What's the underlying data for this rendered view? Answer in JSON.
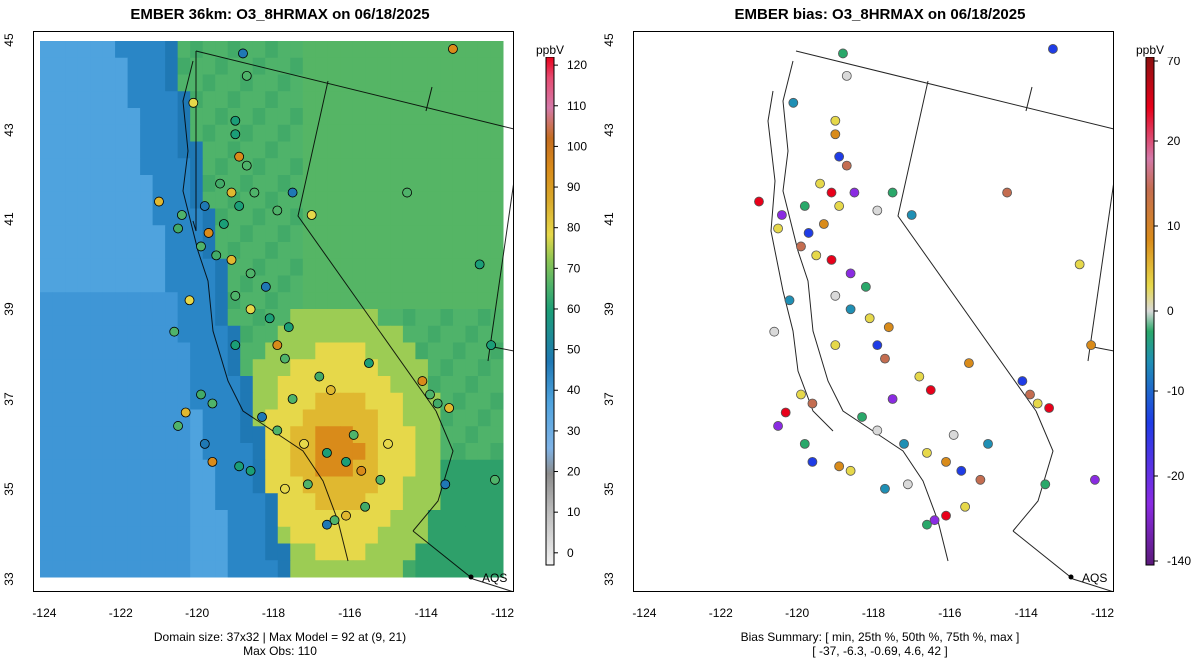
{
  "left_panel": {
    "title": "EMBER 36km: O3_8HRMAX on 06/18/2025",
    "caption_line1": "Domain size: 37x32 | Max Model = 92 at (9, 21)",
    "caption_line2": "Max Obs: 110",
    "colorbar_unit": "ppbV",
    "colorbar_ticks": [
      "120",
      "110",
      "100",
      "90",
      "80",
      "70",
      "60",
      "50",
      "40",
      "30",
      "20",
      "10",
      "0"
    ],
    "colorbar_tick_values": [
      120,
      110,
      100,
      90,
      80,
      70,
      60,
      50,
      40,
      30,
      20,
      10,
      0
    ],
    "colorbar_range": [
      -3,
      122
    ],
    "marker_label": "AQS"
  },
  "right_panel": {
    "title": "EMBER bias: O3_8HRMAX on 06/18/2025",
    "caption_line1": "Bias Summary: [ min, 25th %, 50th %, 75th %, max ]",
    "caption_line2": "[ -37,   -6.3,   -0.69,   4.6,   42 ]",
    "colorbar_unit": "ppbV",
    "colorbar_ticks": [
      "70",
      "20",
      "10",
      "0",
      "-10",
      "-20",
      "-140"
    ],
    "marker_label": "AQS"
  },
  "axes": {
    "y_ticks": [
      "45",
      "43",
      "41",
      "39",
      "37",
      "35",
      "33"
    ],
    "y_values": [
      45,
      43,
      41,
      39,
      37,
      35,
      33
    ],
    "x_ticks": [
      "-124",
      "-122",
      "-120",
      "-118",
      "-116",
      "-114",
      "-112"
    ],
    "x_values": [
      -124,
      -122,
      -120,
      -118,
      -116,
      -114,
      -112
    ],
    "lon_range": [
      -124.3,
      -111.7
    ],
    "lat_range": [
      32.7,
      45.2
    ]
  },
  "colors": {
    "ocean_blue": "#4fa3de",
    "deep_blue": "#1f78b4",
    "green": "#4fb36a",
    "teal": "#1b9e77",
    "yellow": "#e6d84a",
    "orange": "#d98b1a",
    "land_line": "#000000"
  }
}
